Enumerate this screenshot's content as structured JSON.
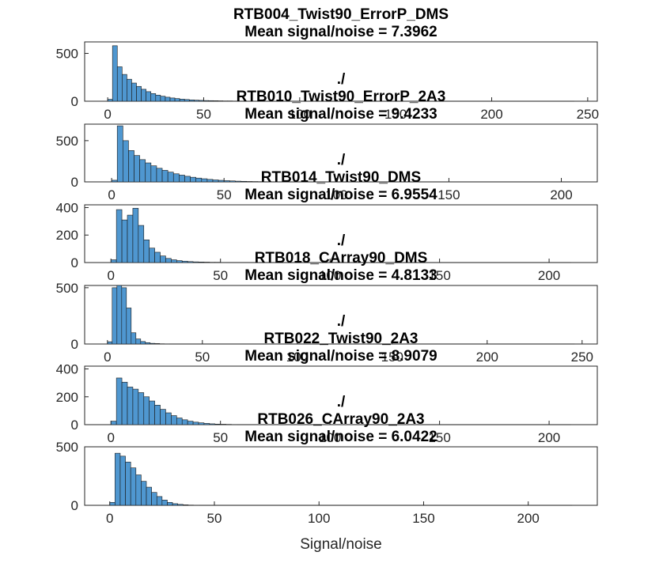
{
  "chart_data": {
    "type": "bar",
    "xlabel": "Signal/noise",
    "bar_color": "#4f97d0",
    "panels": [
      {
        "title_lines": [
          "RTB004_Twist90_ErrorP_DMS",
          "Mean signal/noise = 7.3962"
        ],
        "xlim": [
          -12,
          255
        ],
        "ylim": [
          0,
          620
        ],
        "xticks": [
          0,
          50,
          100,
          150,
          200,
          250
        ],
        "yticks": [
          0,
          500
        ],
        "bin_start": 0,
        "bin_width": 2.5,
        "values": [
          20,
          580,
          360,
          280,
          230,
          190,
          155,
          125,
          100,
          80,
          64,
          52,
          42,
          34,
          28,
          22,
          18,
          14,
          11,
          9,
          7,
          6,
          5,
          4,
          3,
          3,
          2,
          2,
          2,
          1,
          1,
          1
        ]
      },
      {
        "title_lines": [
          "./",
          "RTB010_Twist90_ErrorP_2A3",
          "Mean signal/noise = 9.4233"
        ],
        "xlim": [
          -12,
          216
        ],
        "ylim": [
          0,
          700
        ],
        "xticks": [
          0,
          50,
          100,
          150,
          200
        ],
        "yticks": [
          0,
          500
        ],
        "bin_start": 0,
        "bin_width": 2.5,
        "values": [
          20,
          680,
          500,
          380,
          320,
          270,
          230,
          195,
          165,
          140,
          118,
          98,
          82,
          68,
          56,
          46,
          38,
          30,
          24,
          19,
          15,
          12,
          9,
          7,
          5,
          4,
          3,
          2,
          2,
          1,
          1
        ]
      },
      {
        "title_lines": [
          "./",
          "RTB014_Twist90_DMS",
          "Mean signal/noise = 6.9554"
        ],
        "xlim": [
          -12,
          222
        ],
        "ylim": [
          0,
          420
        ],
        "xticks": [
          0,
          50,
          100,
          150,
          200
        ],
        "yticks": [
          0,
          200,
          400
        ],
        "bin_start": 0,
        "bin_width": 2.5,
        "values": [
          20,
          385,
          310,
          345,
          395,
          270,
          165,
          105,
          75,
          48,
          30,
          20,
          14,
          10,
          7,
          5,
          4,
          3,
          2,
          2,
          1
        ]
      },
      {
        "title_lines": [
          "./",
          "RTB018_CArray90_DMS",
          "Mean signal/noise = 4.8133"
        ],
        "xlim": [
          -12,
          258
        ],
        "ylim": [
          0,
          520
        ],
        "xticks": [
          0,
          50,
          100,
          150,
          200,
          250
        ],
        "yticks": [
          0,
          500
        ],
        "bin_start": 0,
        "bin_width": 2.5,
        "values": [
          20,
          500,
          520,
          500,
          320,
          100,
          45,
          22,
          12,
          6,
          4,
          2,
          1
        ]
      },
      {
        "title_lines": [
          "./",
          "RTB022_Twist90_2A3",
          "Mean signal/noise = 8.9079"
        ],
        "xlim": [
          -12,
          222
        ],
        "ylim": [
          0,
          420
        ],
        "xticks": [
          0,
          50,
          100,
          150,
          200
        ],
        "yticks": [
          0,
          200,
          400
        ],
        "bin_start": 0,
        "bin_width": 2.5,
        "values": [
          25,
          335,
          305,
          270,
          255,
          230,
          200,
          170,
          140,
          110,
          85,
          65,
          48,
          35,
          25,
          18,
          13,
          9,
          6,
          4,
          3,
          2,
          1
        ]
      },
      {
        "title_lines": [
          "./",
          "RTB026_CArray90_2A3",
          "Mean signal/noise = 6.0422"
        ],
        "xlim": [
          -12,
          233
        ],
        "ylim": [
          0,
          500
        ],
        "xticks": [
          0,
          50,
          100,
          150,
          200
        ],
        "yticks": [
          0,
          500
        ],
        "bin_start": 0,
        "bin_width": 2.5,
        "values": [
          25,
          445,
          420,
          370,
          320,
          260,
          205,
          155,
          110,
          75,
          45,
          25,
          14,
          8,
          4,
          2,
          1
        ]
      }
    ]
  }
}
